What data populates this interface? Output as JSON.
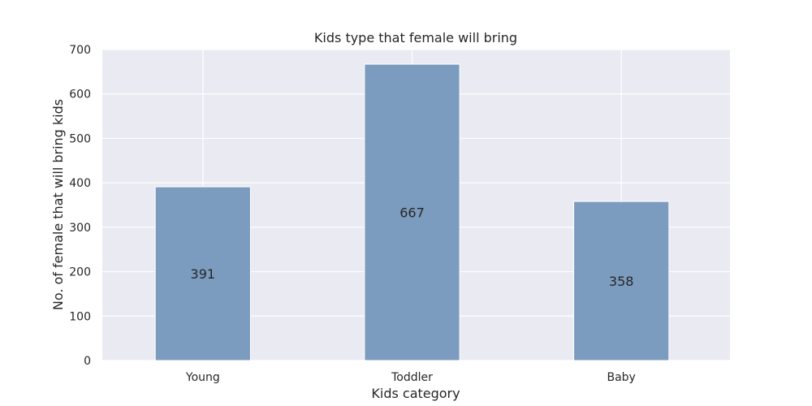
{
  "chart_data": {
    "type": "bar",
    "title": "Kids type that female will bring",
    "xlabel": "Kids category",
    "ylabel": "No. of female that will bring kids",
    "categories": [
      "Young",
      "Toddler",
      "Baby"
    ],
    "values": [
      391,
      667,
      358
    ],
    "value_labels": [
      "391",
      "667",
      "358"
    ],
    "ylim": [
      0,
      700
    ],
    "yticks": [
      0,
      100,
      200,
      300,
      400,
      500,
      600,
      700
    ],
    "ytick_labels": [
      "0",
      "100",
      "200",
      "300",
      "400",
      "500",
      "600",
      "700"
    ],
    "grid": true,
    "legend": "none",
    "colors": {
      "bar": "#7b9cbf",
      "bar_edge": "#ffffff",
      "plot_background": "#eaeaf2",
      "grid": "#ffffff"
    }
  }
}
